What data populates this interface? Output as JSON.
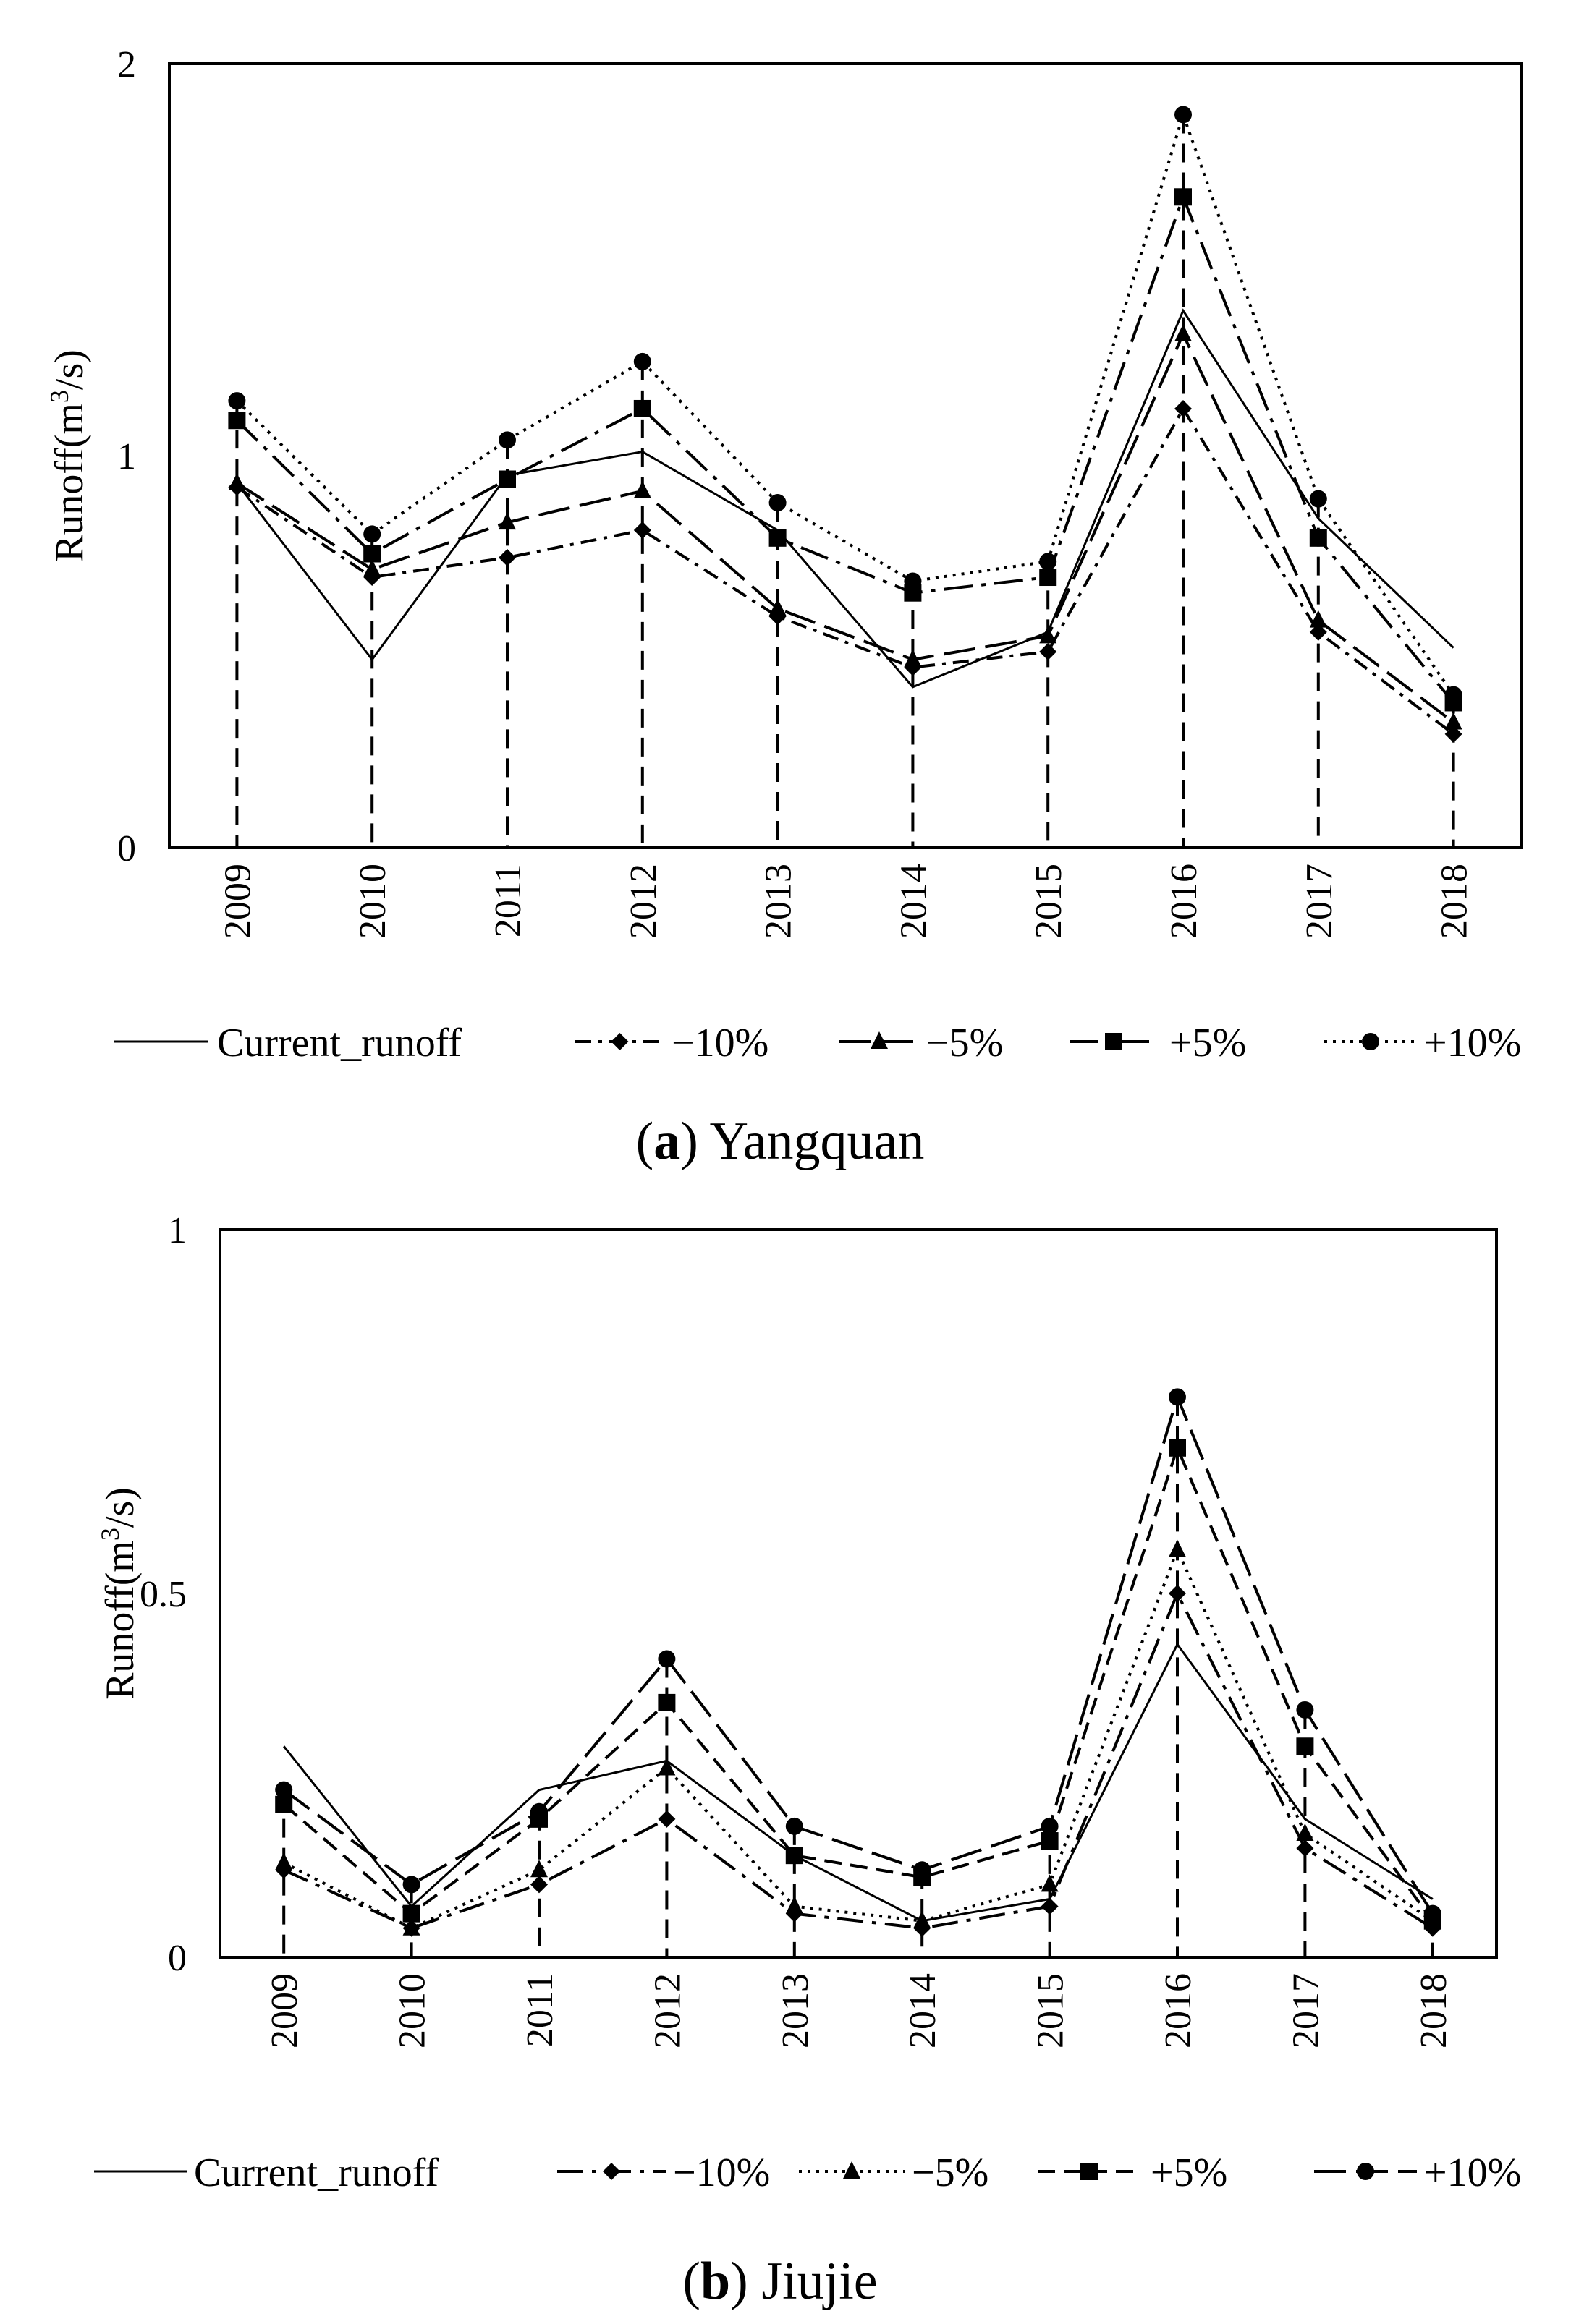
{
  "chart_data": [
    {
      "type": "line",
      "title": "",
      "caption": {
        "letter": "a",
        "station": "Yangquan",
        "open": "(",
        "close": ")"
      },
      "xlabel": "",
      "ylabel": "Runoff(m³/s)",
      "ylabel_parts": {
        "pre": "Runoff(m",
        "sup": "3",
        "post": "/s)"
      },
      "categories": [
        "2009",
        "2010",
        "2011",
        "2012",
        "2013",
        "2014",
        "2015",
        "2016",
        "2017",
        "2018"
      ],
      "ylim": [
        0,
        2
      ],
      "yticks": [
        0,
        1,
        2
      ],
      "ytick_labels": [
        "0",
        "1",
        "2"
      ],
      "dropline_from": "+10%",
      "series": [
        {
          "name": "Current_runoff",
          "style": "solid",
          "marker": "none",
          "values": [
            0.93,
            0.48,
            0.95,
            1.01,
            0.81,
            0.41,
            0.55,
            1.37,
            0.84,
            0.51
          ]
        },
        {
          "name": "−10%",
          "style": "dash-dot",
          "marker": "diamond",
          "values": [
            0.92,
            0.69,
            0.74,
            0.81,
            0.59,
            0.46,
            0.5,
            1.12,
            0.55,
            0.29
          ]
        },
        {
          "name": "−5%",
          "style": "long-dash",
          "marker": "triangle",
          "values": [
            0.93,
            0.71,
            0.83,
            0.91,
            0.61,
            0.48,
            0.54,
            1.31,
            0.58,
            0.32
          ]
        },
        {
          "name": "+5%",
          "style": "dash-dot-long",
          "marker": "square",
          "values": [
            1.09,
            0.75,
            0.94,
            1.12,
            0.79,
            0.65,
            0.69,
            1.66,
            0.79,
            0.37
          ]
        },
        {
          "name": "+10%",
          "style": "dotted",
          "marker": "circle",
          "values": [
            1.14,
            0.8,
            1.04,
            1.24,
            0.88,
            0.68,
            0.73,
            1.87,
            0.89,
            0.39
          ]
        }
      ]
    },
    {
      "type": "line",
      "title": "",
      "caption": {
        "letter": "b",
        "station": "Jiujie",
        "open": "(",
        "close": ")"
      },
      "xlabel": "",
      "ylabel": "Runoff(m³/s)",
      "ylabel_parts": {
        "pre": "Runoff(m",
        "sup": "3",
        "post": "/s)"
      },
      "categories": [
        "2009",
        "2010",
        "2011",
        "2012",
        "2013",
        "2014",
        "2015",
        "2016",
        "2017",
        "2018"
      ],
      "ylim": [
        0,
        1
      ],
      "yticks": [
        0,
        0.5,
        1
      ],
      "ytick_labels": [
        "0",
        "0.5",
        "1"
      ],
      "dropline_from": "+10%",
      "series": [
        {
          "name": "Current_runoff",
          "style": "solid",
          "marker": "none",
          "values": [
            0.29,
            0.07,
            0.23,
            0.27,
            0.14,
            0.05,
            0.08,
            0.43,
            0.19,
            0.08
          ]
        },
        {
          "name": "−10%",
          "style": "long-dash-dot",
          "marker": "diamond",
          "values": [
            0.12,
            0.04,
            0.1,
            0.19,
            0.06,
            0.04,
            0.07,
            0.5,
            0.15,
            0.04
          ]
        },
        {
          "name": "−5%",
          "style": "dotted",
          "marker": "triangle",
          "values": [
            0.13,
            0.04,
            0.12,
            0.26,
            0.07,
            0.05,
            0.1,
            0.56,
            0.17,
            0.05
          ]
        },
        {
          "name": "+5%",
          "style": "dashed",
          "marker": "square",
          "values": [
            0.21,
            0.06,
            0.19,
            0.35,
            0.14,
            0.11,
            0.16,
            0.7,
            0.29,
            0.05
          ]
        },
        {
          "name": "+10%",
          "style": "long-dash",
          "marker": "circle",
          "values": [
            0.23,
            0.1,
            0.2,
            0.41,
            0.18,
            0.12,
            0.18,
            0.77,
            0.34,
            0.06
          ]
        }
      ]
    }
  ]
}
